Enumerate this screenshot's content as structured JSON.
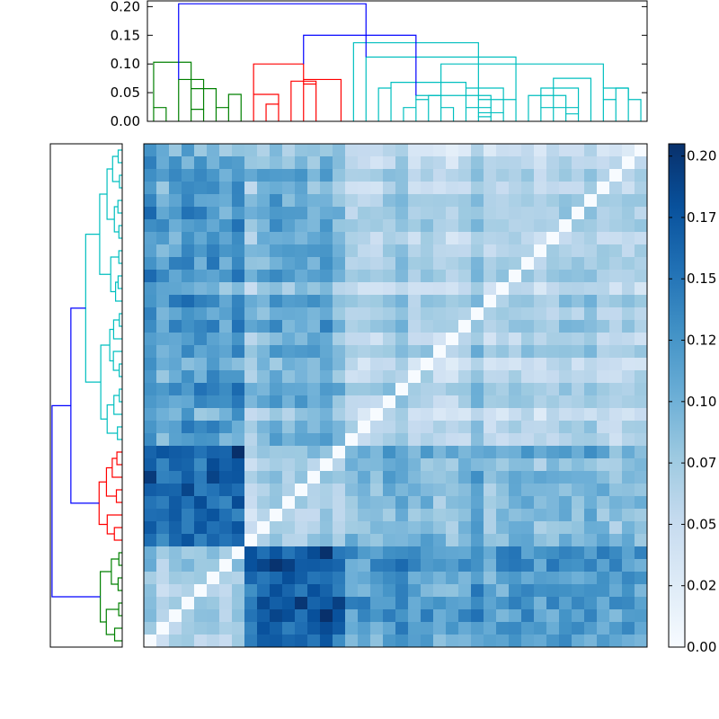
{
  "chart_data": [
    {
      "type": "dendrogram",
      "orientation": "top",
      "title": "",
      "ylim": [
        0,
        0.21
      ],
      "ytick_labels": [
        "0.00",
        "0.05",
        "0.10",
        "0.15",
        "0.20"
      ],
      "yticks": [
        0.0,
        0.05,
        0.1,
        0.15,
        0.2
      ],
      "leaf_count": 40,
      "root_height": 0.205,
      "cluster_colors": [
        "#008000",
        "#ff0000",
        "#00bfbf"
      ],
      "link_color_above_threshold": "#0000ff",
      "clusters": [
        {
          "color": "#008000",
          "leaves": 8,
          "merge_height": 0.103
        },
        {
          "color": "#ff0000",
          "leaves": 8,
          "merge_height": 0.1
        },
        {
          "color": "#00bfbf",
          "leaves": 24,
          "merge_height": 0.137
        }
      ],
      "links": [
        {
          "xs": [
            1,
            2
          ],
          "h": [
            0.024,
            0.024
          ],
          "c": "g"
        },
        {
          "xs": [
            4,
            5
          ],
          "h": [
            0.021,
            0.021
          ],
          "c": "g"
        },
        {
          "xs": [
            6,
            7
          ],
          "h": [
            0.024,
            0.024
          ],
          "c": "g"
        },
        {
          "xs": [
            7,
            8
          ],
          "h": [
            0.047,
            0.047
          ],
          "c": "g"
        },
        {
          "xs": [
            4,
            6
          ],
          "h": [
            0.057,
            0.057
          ],
          "c": "g"
        },
        {
          "xs": [
            3,
            5
          ],
          "h": [
            0.073,
            0.073
          ],
          "c": "g"
        },
        {
          "xs": [
            1,
            4
          ],
          "h": [
            0.103,
            0.103
          ],
          "c": "g"
        },
        {
          "xs": [
            10,
            11
          ],
          "h": [
            0.03,
            0.03
          ],
          "c": "r"
        },
        {
          "xs": [
            9,
            11
          ],
          "h": [
            0.047,
            0.047
          ],
          "c": "r"
        },
        {
          "xs": [
            13,
            14
          ],
          "h": [
            0.065,
            0.065
          ],
          "c": "r"
        },
        {
          "xs": [
            12,
            14
          ],
          "h": [
            0.07,
            0.07
          ],
          "c": "r"
        },
        {
          "xs": [
            13,
            16
          ],
          "h": [
            0.073,
            0.073
          ],
          "c": "r"
        },
        {
          "xs": [
            9,
            13
          ],
          "h": [
            0.1,
            0.1
          ],
          "c": "r"
        },
        {
          "xs": [
            19,
            20
          ],
          "h": [
            0.058,
            0.058
          ],
          "c": "c"
        },
        {
          "xs": [
            21,
            22
          ],
          "h": [
            0.024,
            0.024
          ],
          "c": "c"
        },
        {
          "xs": [
            22,
            23
          ],
          "h": [
            0.038,
            0.038
          ],
          "c": "c"
        },
        {
          "xs": [
            24,
            25
          ],
          "h": [
            0.024,
            0.024
          ],
          "c": "c"
        },
        {
          "xs": [
            22,
            24
          ],
          "h": [
            0.045,
            0.045
          ],
          "c": "c"
        },
        {
          "xs": [
            27,
            28
          ],
          "h": [
            0.008,
            0.008
          ],
          "c": "c"
        },
        {
          "xs": [
            27,
            29
          ],
          "h": [
            0.015,
            0.015
          ],
          "c": "c"
        },
        {
          "xs": [
            26,
            28
          ],
          "h": [
            0.024,
            0.024
          ],
          "c": "c"
        },
        {
          "xs": [
            27,
            30
          ],
          "h": [
            0.038,
            0.038
          ],
          "c": "c"
        },
        {
          "xs": [
            26,
            29
          ],
          "h": [
            0.058,
            0.058
          ],
          "c": "c"
        },
        {
          "xs": [
            23,
            28
          ],
          "h": [
            0.045,
            0.045
          ],
          "c": "c"
        },
        {
          "xs": [
            32,
            33
          ],
          "h": [
            0.024,
            0.024
          ],
          "c": "c"
        },
        {
          "xs": [
            34,
            35
          ],
          "h": [
            0.013,
            0.013
          ],
          "c": "c"
        },
        {
          "xs": [
            33,
            35
          ],
          "h": [
            0.024,
            0.024
          ],
          "c": "c"
        },
        {
          "xs": [
            31,
            34
          ],
          "h": [
            0.045,
            0.045
          ],
          "c": "c"
        },
        {
          "xs": [
            32,
            35
          ],
          "h": [
            0.058,
            0.058
          ],
          "c": "c"
        },
        {
          "xs": [
            33,
            36
          ],
          "h": [
            0.075,
            0.075
          ],
          "c": "c"
        },
        {
          "xs": [
            37,
            38
          ],
          "h": [
            0.038,
            0.038
          ],
          "c": "c"
        },
        {
          "xs": [
            38,
            39
          ],
          "h": [
            0.058,
            0.058
          ],
          "c": "c"
        },
        {
          "xs": [
            39,
            40
          ],
          "h": [
            0.038,
            0.038
          ],
          "c": "c"
        },
        {
          "xs": [
            37,
            39
          ],
          "h": [
            0.058,
            0.058
          ],
          "c": "c"
        },
        {
          "xs": [
            20,
            26
          ],
          "h": [
            0.068,
            0.068
          ],
          "c": "c"
        },
        {
          "xs": [
            24,
            37
          ],
          "h": [
            0.1,
            0.1
          ],
          "c": "c"
        },
        {
          "xs": [
            18,
            30
          ],
          "h": [
            0.112,
            0.112
          ],
          "c": "c"
        },
        {
          "xs": [
            17,
            27
          ],
          "h": [
            0.137,
            0.137
          ],
          "c": "c"
        },
        {
          "xs": [
            13,
            22
          ],
          "h": [
            0.15,
            0.15
          ],
          "c": "b"
        },
        {
          "xs": [
            3,
            18
          ],
          "h": [
            0.205,
            0.205
          ],
          "c": "b"
        }
      ]
    },
    {
      "type": "dendrogram",
      "orientation": "left",
      "title": "",
      "leaf_count": 40,
      "cluster_colors": [
        "#00bfbf",
        "#ff0000",
        "#008000"
      ],
      "link_color_above_threshold": "#0000ff",
      "clusters": [
        {
          "color": "#00bfbf",
          "leaves": 24
        },
        {
          "color": "#ff0000",
          "leaves": 8
        },
        {
          "color": "#008000",
          "leaves": 8
        }
      ]
    },
    {
      "type": "heatmap",
      "title": "",
      "rows": 40,
      "cols": 40,
      "diagonal": 0.0,
      "value_range": [
        0.0,
        0.205
      ],
      "cluster_blocks_top_to_bottom": [
        "cyan-24",
        "red-8",
        "green-8"
      ],
      "cluster_blocks_left_to_right": [
        "green-8",
        "red-8",
        "cyan-24"
      ],
      "colormap": "Blues",
      "seed": 7
    },
    {
      "type": "colorbar",
      "title": "",
      "range": [
        0.0,
        0.205
      ],
      "tick_labels": [
        "0.00",
        "0.02",
        "0.05",
        "0.07",
        "0.10",
        "0.12",
        "0.15",
        "0.17",
        "0.20"
      ],
      "ticks": [
        0.0,
        0.025,
        0.05,
        0.075,
        0.1,
        0.125,
        0.15,
        0.175,
        0.2
      ],
      "colors": [
        "#f7fbff",
        "#deebf7",
        "#c6dbef",
        "#9ecae1",
        "#6baed6",
        "#4292c6",
        "#2171b5",
        "#08519c",
        "#08306b"
      ]
    }
  ]
}
